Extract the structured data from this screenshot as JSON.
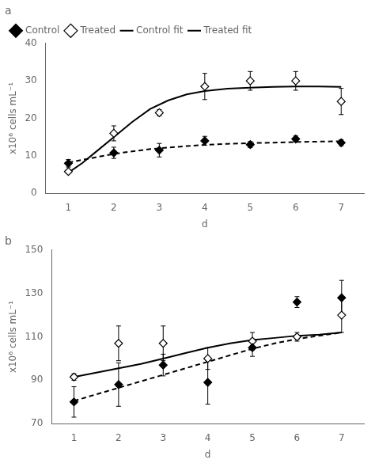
{
  "chart_data": [
    {
      "type": "scatter",
      "title": "a",
      "x_label": "d",
      "y_label": "x10⁶ cells mL⁻¹",
      "xlim": [
        0.5,
        7.5
      ],
      "xticks": [
        1,
        2,
        3,
        4,
        5,
        6,
        7
      ],
      "ylim": [
        0,
        40
      ],
      "yticks": [
        0,
        10,
        20,
        30,
        40
      ],
      "grid": false,
      "legend": "upper left",
      "series": [
        {
          "name": "Control",
          "type": "scatter",
          "marker": "diamond",
          "color": "#000000",
          "x": [
            1,
            2,
            3,
            4,
            5,
            6,
            7
          ],
          "values": [
            8.0,
            10.8,
            11.5,
            14.0,
            13.0,
            14.5,
            13.5
          ],
          "errors": [
            1.0,
            1.5,
            1.8,
            1.2,
            0.8,
            0.8,
            0.8
          ]
        },
        {
          "name": "Treated",
          "type": "scatter",
          "marker": "diamond_open",
          "color": "#000000",
          "x": [
            1,
            2,
            3,
            4,
            5,
            6,
            7
          ],
          "values": [
            5.8,
            16.0,
            21.5,
            28.5,
            30.0,
            30.0,
            24.5
          ],
          "errors": [
            0.5,
            2.0,
            0.8,
            3.5,
            2.5,
            2.5,
            3.5
          ]
        },
        {
          "name": "Control fit",
          "type": "line",
          "line_style": "dashed",
          "color": "#000000",
          "x": [
            1.0,
            1.3,
            1.6,
            2.0,
            2.4,
            2.8,
            3.2,
            3.6,
            4.0,
            4.5,
            5.0,
            5.5,
            6.0,
            6.5,
            7.0
          ],
          "values": [
            8.2,
            8.9,
            9.6,
            10.5,
            11.2,
            11.8,
            12.2,
            12.6,
            12.9,
            13.2,
            13.4,
            13.5,
            13.7,
            13.8,
            13.9
          ]
        },
        {
          "name": "Treated fit",
          "type": "line",
          "line_style": "solid",
          "color": "#000000",
          "x": [
            1.0,
            1.3,
            1.6,
            2.0,
            2.4,
            2.8,
            3.2,
            3.6,
            4.0,
            4.5,
            5.0,
            5.5,
            6.0,
            6.5,
            7.0
          ],
          "values": [
            5.5,
            8.0,
            11.0,
            15.0,
            19.0,
            22.5,
            24.8,
            26.4,
            27.3,
            27.9,
            28.2,
            28.4,
            28.5,
            28.5,
            28.4
          ]
        }
      ]
    },
    {
      "type": "scatter",
      "title": "b",
      "x_label": "d",
      "y_label": "x10⁶ cells mL⁻¹",
      "xlim": [
        0.5,
        7.5
      ],
      "xticks": [
        1,
        2,
        3,
        4,
        5,
        6,
        7
      ],
      "ylim": [
        70,
        150
      ],
      "yticks": [
        70,
        90,
        110,
        130,
        150
      ],
      "grid": false,
      "series": [
        {
          "type": "scatter",
          "marker": "diamond",
          "color": "#000000",
          "x": [
            1,
            2,
            3,
            4,
            5,
            6,
            7
          ],
          "values": [
            80.0,
            88.0,
            97.0,
            89.0,
            105.0,
            126.0,
            128.0
          ],
          "errors": [
            7.0,
            10.0,
            5.0,
            10.0,
            4.0,
            2.5,
            8.0
          ]
        },
        {
          "type": "scatter",
          "marker": "diamond_open",
          "color": "#000000",
          "x": [
            1,
            2,
            3,
            4,
            5,
            6,
            7
          ],
          "values": [
            91.5,
            107.0,
            107.0,
            100.0,
            108.0,
            110.0,
            120.0
          ],
          "errors": [
            1.5,
            8.0,
            8.0,
            5.0,
            4.0,
            2.0,
            8.0
          ]
        },
        {
          "type": "line",
          "line_style": "dashed",
          "color": "#000000",
          "x": [
            1.0,
            1.5,
            2.0,
            2.5,
            3.0,
            3.5,
            4.0,
            4.5,
            5.0,
            5.5,
            6.0,
            6.5,
            7.0
          ],
          "values": [
            80.5,
            83.5,
            86.5,
            89.5,
            92.5,
            95.5,
            98.5,
            101.5,
            104.5,
            107.0,
            109.0,
            110.5,
            112.0
          ]
        },
        {
          "type": "line",
          "line_style": "solid",
          "color": "#000000",
          "x": [
            1.0,
            1.5,
            2.0,
            2.5,
            3.0,
            3.5,
            4.0,
            4.5,
            5.0,
            5.5,
            6.0,
            6.5,
            7.0
          ],
          "values": [
            91.5,
            93.5,
            95.5,
            97.5,
            100.0,
            102.5,
            105.0,
            107.0,
            108.5,
            109.5,
            110.5,
            111.0,
            112.0
          ]
        }
      ]
    }
  ]
}
